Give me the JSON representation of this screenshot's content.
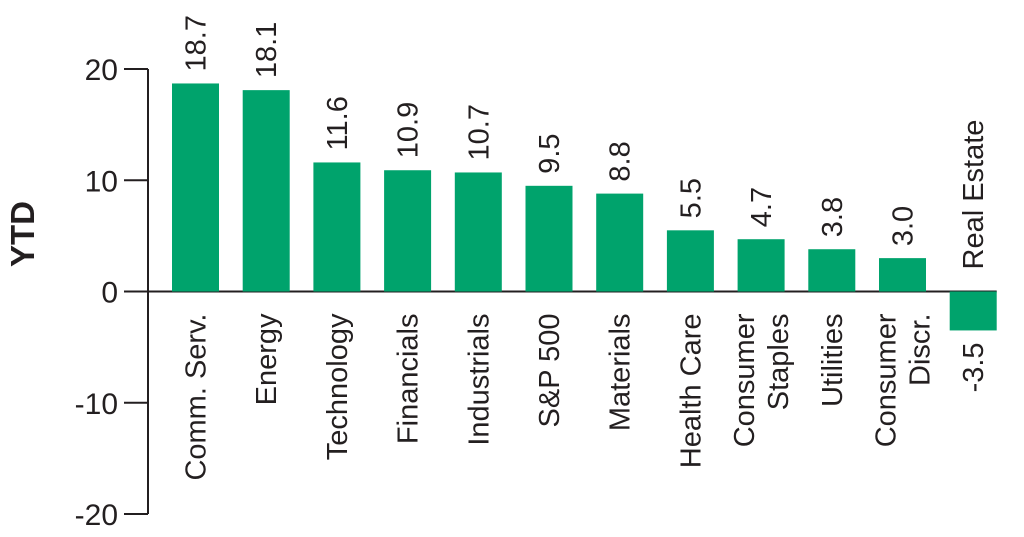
{
  "chart_data": {
    "type": "bar",
    "ylabel": "YTD",
    "ylim": [
      -20,
      20
    ],
    "yticks": [
      20,
      10,
      0,
      -10,
      -20
    ],
    "bar_color": "#00a36c",
    "axis_color": "#231f20",
    "categories": [
      [
        "Comm. Serv."
      ],
      [
        "Energy"
      ],
      [
        "Technology"
      ],
      [
        "Financials"
      ],
      [
        "Industrials"
      ],
      [
        "S&P 500"
      ],
      [
        "Materials"
      ],
      [
        "Health Care"
      ],
      [
        "Consumer",
        "Staples"
      ],
      [
        "Utilities"
      ],
      [
        "Consumer",
        "Discr."
      ],
      [
        "Real Estate"
      ]
    ],
    "values": [
      18.7,
      18.1,
      11.6,
      10.9,
      10.7,
      9.5,
      8.8,
      5.5,
      4.7,
      3.8,
      3.0,
      -3.5
    ],
    "value_labels": [
      "18.7",
      "18.1",
      "11.6",
      "10.9",
      "10.7",
      "9.5",
      "8.8",
      "5.5",
      "4.7",
      "3.8",
      "3.0",
      "-3.5"
    ]
  }
}
